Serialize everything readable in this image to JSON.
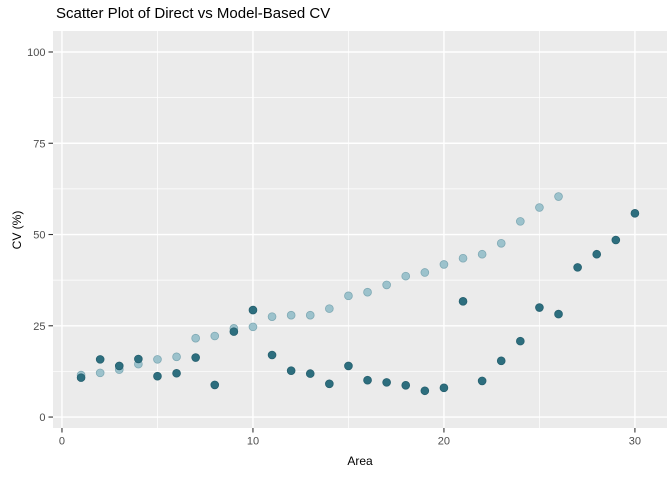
{
  "page": {
    "background": "#ffffff"
  },
  "chart_data": {
    "type": "scatter",
    "title": "Scatter Plot of Direct vs Model-Based CV",
    "xlabel": "Area",
    "ylabel": "CV (%)",
    "xlim": [
      -0.47,
      31.68
    ],
    "ylim": [
      -3.0,
      105.75
    ],
    "x_ticks": [
      0,
      10,
      20,
      30
    ],
    "x_minor_ticks": [
      5,
      15,
      25
    ],
    "y_ticks": [
      0,
      25,
      50,
      75,
      100
    ],
    "y_minor_ticks": [
      12.5,
      37.5,
      62.5,
      87.5
    ],
    "grid": "on",
    "legend": "none",
    "panel_bg_color": "#ebebeb",
    "grid_color": "#ffffff",
    "tick_mark_color": "#333333",
    "tick_label_color": "#4d4d4d",
    "series": [
      {
        "name": "Model-Based",
        "color": "#9cc2cc",
        "edge_color": "#7fa9b4",
        "x": [
          1,
          2,
          3,
          4,
          5,
          6,
          7,
          8,
          9,
          10,
          11,
          12,
          13,
          14,
          15,
          16,
          17,
          18,
          19,
          20,
          21,
          22,
          23,
          24,
          25,
          26
        ],
        "y": [
          11.5,
          12.1,
          13.0,
          14.5,
          15.8,
          16.5,
          21.6,
          22.2,
          24.3,
          24.7,
          27.5,
          27.9,
          27.9,
          29.7,
          33.2,
          34.2,
          36.2,
          38.6,
          39.6,
          41.8,
          43.5,
          44.6,
          47.6,
          53.6,
          57.4,
          60.4
        ]
      },
      {
        "name": "Direct",
        "color": "#2d6e7e",
        "edge_color": "#26606f",
        "x": [
          1,
          2,
          3,
          4,
          5,
          6,
          7,
          8,
          9,
          10,
          11,
          12,
          13,
          14,
          15,
          16,
          17,
          18,
          19,
          20,
          21,
          22,
          23,
          24,
          25,
          26,
          27,
          28,
          29,
          30
        ],
        "y": [
          10.8,
          15.8,
          14.0,
          15.9,
          11.2,
          12.0,
          16.3,
          8.8,
          23.4,
          29.3,
          17.0,
          12.7,
          11.9,
          9.1,
          14.0,
          10.1,
          9.5,
          8.7,
          7.2,
          8.0,
          31.7,
          9.9,
          15.4,
          20.8,
          30.0,
          28.2,
          41.0,
          44.6,
          48.5,
          55.8
        ]
      }
    ]
  }
}
